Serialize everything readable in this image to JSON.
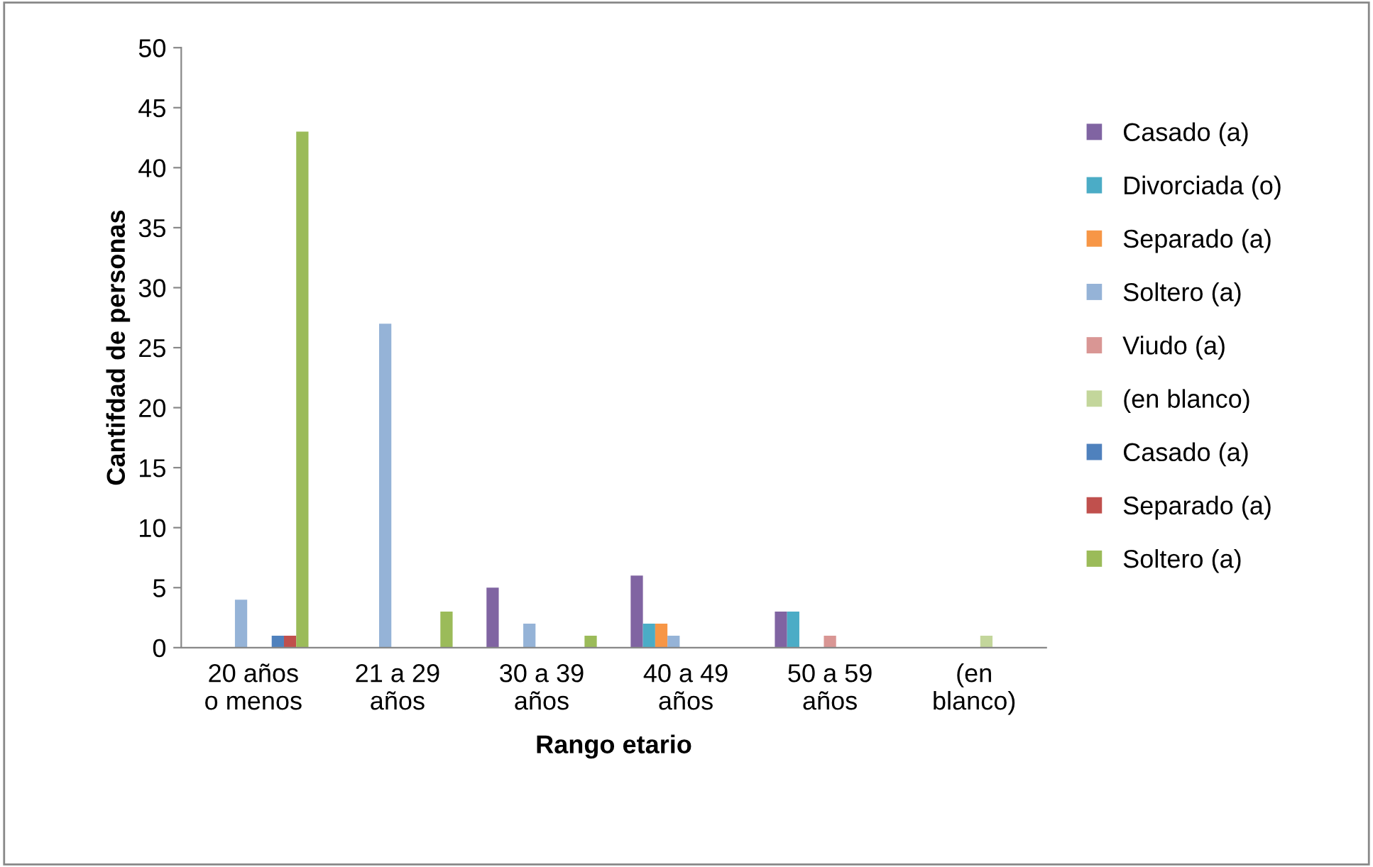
{
  "chart_data": {
    "type": "bar",
    "xlabel": "Rango etario",
    "ylabel": "Cantifdad de personas",
    "categories": [
      "20 años\no menos",
      "21 a 29\naños",
      "30 a 39\naños",
      "40 a 49\naños",
      "50 a 59\naños",
      "(en\nblanco)"
    ],
    "series": [
      {
        "name": "Casado (a)",
        "color": "#8064a2",
        "values": [
          null,
          null,
          5,
          6,
          3,
          null
        ]
      },
      {
        "name": "Divorciada (o)",
        "color": "#4bacc6",
        "values": [
          null,
          null,
          null,
          2,
          3,
          null
        ]
      },
      {
        "name": "Separado (a)",
        "color": "#f79646",
        "values": [
          null,
          null,
          null,
          2,
          null,
          null
        ]
      },
      {
        "name": "Soltero (a)",
        "color": "#95b3d7",
        "values": [
          4,
          27,
          2,
          1,
          null,
          null
        ]
      },
      {
        "name": "Viudo (a)",
        "color": "#d99694",
        "values": [
          null,
          null,
          null,
          null,
          1,
          null
        ]
      },
      {
        "name": "(en blanco)",
        "color": "#c3d69b",
        "values": [
          null,
          null,
          null,
          null,
          null,
          1
        ]
      },
      {
        "name": "Casado (a)",
        "color": "#4f81bd",
        "values": [
          1,
          null,
          null,
          null,
          null,
          null
        ]
      },
      {
        "name": "Separado (a)",
        "color": "#c0504d",
        "values": [
          1,
          null,
          null,
          null,
          null,
          null
        ]
      },
      {
        "name": "Soltero (a)",
        "color": "#9bbb59",
        "values": [
          43,
          3,
          1,
          null,
          null,
          null
        ]
      }
    ],
    "ylim": [
      0,
      50
    ],
    "yticks": [
      0,
      5,
      10,
      15,
      20,
      25,
      30,
      35,
      40,
      45,
      50
    ],
    "grid": false,
    "legend": "right"
  }
}
